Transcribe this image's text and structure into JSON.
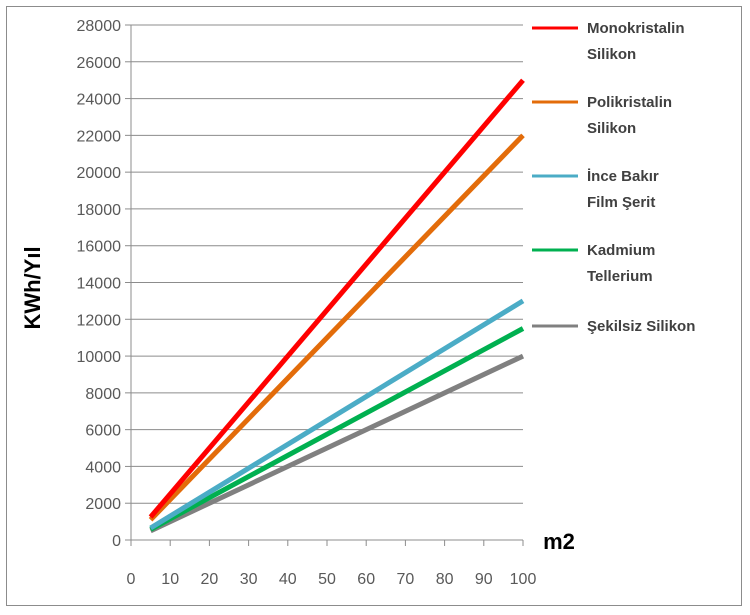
{
  "chart_data": {
    "type": "line",
    "xlabel": "m2",
    "ylabel": "KWh/Yıl",
    "xlim": [
      0,
      100
    ],
    "ylim": [
      0,
      28000
    ],
    "x_ticks": [
      0,
      10,
      20,
      30,
      40,
      50,
      60,
      70,
      80,
      90,
      100
    ],
    "y_ticks": [
      0,
      2000,
      4000,
      6000,
      8000,
      10000,
      12000,
      14000,
      16000,
      18000,
      20000,
      22000,
      24000,
      26000,
      28000
    ],
    "grid": "horizontal",
    "legend_position": "right",
    "series": [
      {
        "name": "Monokristalin Silikon",
        "name_lines": [
          "Monokristalin",
          "Silikon"
        ],
        "color": "#ff0000",
        "x": [
          5,
          100
        ],
        "y": [
          1250,
          25000
        ]
      },
      {
        "name": "Polikristalin Silikon",
        "name_lines": [
          "Polikristalin",
          "Silikon"
        ],
        "color": "#e36c0a",
        "x": [
          5,
          100
        ],
        "y": [
          1100,
          22000
        ]
      },
      {
        "name": "İnce Bakır Film Şerit",
        "name_lines": [
          "İnce Bakır",
          "Film Şerit"
        ],
        "color": "#4bacc6",
        "x": [
          5,
          100
        ],
        "y": [
          650,
          13000
        ]
      },
      {
        "name": "Kadmium Tellerium",
        "name_lines": [
          "Kadmium",
          "Tellerium"
        ],
        "color": "#00b050",
        "x": [
          5,
          100
        ],
        "y": [
          575,
          11500
        ]
      },
      {
        "name": "Şekilsiz Silikon",
        "name_lines": [
          "Şekilsiz Silikon"
        ],
        "color": "#808080",
        "x": [
          5,
          100
        ],
        "y": [
          500,
          10000
        ]
      }
    ]
  }
}
